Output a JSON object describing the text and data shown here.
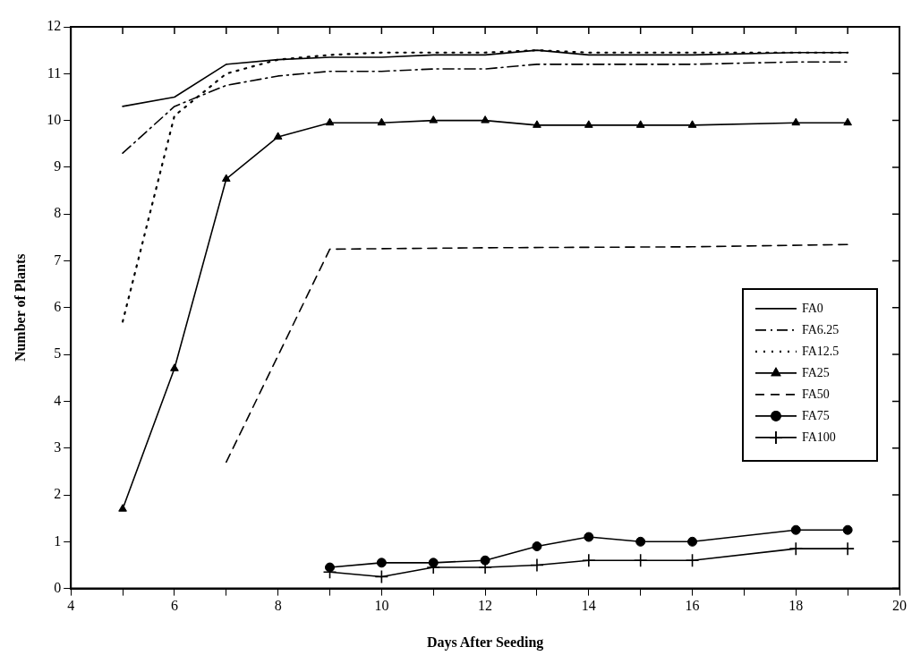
{
  "chart_data": {
    "type": "line",
    "xlabel": "Days After Seeding",
    "ylabel": "Number of Plants",
    "xlim": [
      4,
      20
    ],
    "ylim": [
      0,
      12
    ],
    "xticks": [
      4,
      {
        "value": 5,
        "label": null
      },
      6,
      {
        "value": 7,
        "label": null
      },
      8,
      {
        "value": 9,
        "label": null
      },
      10,
      {
        "value": 11,
        "label": null
      },
      12,
      {
        "value": 13,
        "label": null
      },
      14,
      {
        "value": 15,
        "label": null
      },
      16,
      {
        "value": 17,
        "label": null
      },
      18,
      {
        "value": 19,
        "label": null
      },
      20
    ],
    "yticks": [
      0,
      1,
      2,
      3,
      4,
      5,
      6,
      7,
      8,
      9,
      10,
      11,
      12
    ],
    "grid": false,
    "legend": "right",
    "marker": "none",
    "series": [
      {
        "name": "FA0",
        "color": "#000000",
        "line_style": "solid",
        "x": [
          5,
          6,
          7,
          8,
          9,
          10,
          11,
          12,
          13,
          14,
          15,
          16,
          18,
          19
        ],
        "values": [
          10.3,
          10.5,
          11.2,
          11.3,
          11.35,
          11.35,
          11.4,
          11.4,
          11.5,
          11.4,
          11.4,
          11.4,
          11.45,
          11.45
        ]
      },
      {
        "name": "FA6.25",
        "color": "#000000",
        "line_style": "dashdot",
        "x": [
          5,
          6,
          7,
          8,
          9,
          10,
          11,
          12,
          13,
          14,
          15,
          16,
          18,
          19
        ],
        "values": [
          9.3,
          10.3,
          10.75,
          10.95,
          11.05,
          11.05,
          11.1,
          11.1,
          11.2,
          11.2,
          11.2,
          11.2,
          11.25,
          11.25
        ]
      },
      {
        "name": "FA12.5",
        "color": "#000000",
        "line_style": "dotted",
        "x": [
          5,
          6,
          7,
          8,
          9,
          10,
          11,
          12,
          13,
          14,
          15,
          16,
          18,
          19
        ],
        "values": [
          5.7,
          10.1,
          11.0,
          11.3,
          11.4,
          11.45,
          11.45,
          11.45,
          11.5,
          11.45,
          11.45,
          11.45,
          11.45,
          11.45
        ]
      },
      {
        "name": "FA25",
        "color": "#000000",
        "line_style": "solid",
        "marker": "triangle",
        "x": [
          5,
          6,
          7,
          8,
          9,
          10,
          11,
          12,
          13,
          14,
          15,
          16,
          18,
          19
        ],
        "values": [
          1.7,
          4.7,
          8.75,
          9.65,
          9.95,
          9.95,
          10.0,
          10.0,
          9.9,
          9.9,
          9.9,
          9.9,
          9.95,
          9.95
        ]
      },
      {
        "name": "FA50",
        "color": "#000000",
        "line_style": "dashed",
        "x": [
          7,
          9,
          12,
          16,
          19
        ],
        "values": [
          2.7,
          7.25,
          7.28,
          7.3,
          7.35
        ]
      },
      {
        "name": "FA75",
        "color": "#000000",
        "line_style": "solid",
        "marker": "circle",
        "x": [
          9,
          10,
          11,
          12,
          13,
          14,
          15,
          16,
          18,
          19
        ],
        "values": [
          0.45,
          0.55,
          0.55,
          0.6,
          0.9,
          1.1,
          1.0,
          1.0,
          1.25,
          1.25
        ]
      },
      {
        "name": "FA100",
        "color": "#000000",
        "line_style": "solid",
        "marker": "cross",
        "x": [
          9,
          10,
          11,
          12,
          13,
          14,
          15,
          16,
          18,
          19
        ],
        "values": [
          0.35,
          0.25,
          0.45,
          0.45,
          0.5,
          0.6,
          0.6,
          0.6,
          0.85,
          0.85
        ]
      }
    ]
  }
}
